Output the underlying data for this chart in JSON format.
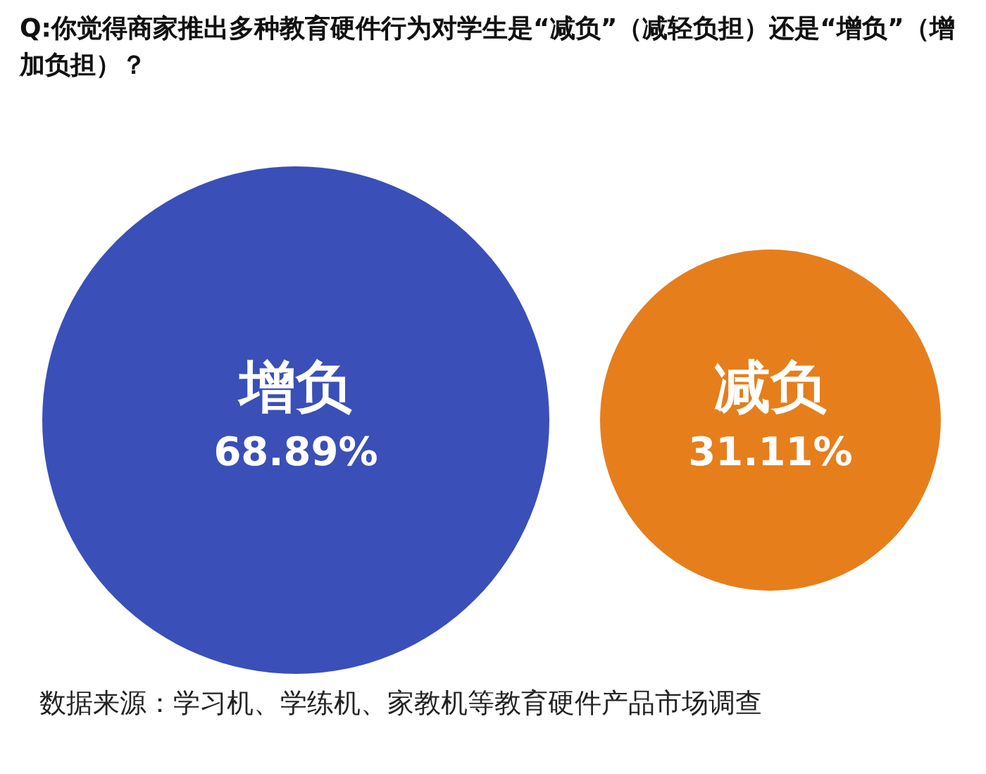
{
  "chart_data": {
    "type": "other",
    "title": "Q:你觉得商家推出多种教育硬件行为对学生是“减负”（减轻负担）还是“增负”（增加负担）？",
    "categories": [
      "增负",
      "减负"
    ],
    "values": [
      68.89,
      31.11
    ],
    "value_labels": [
      "68.89%",
      "31.11%"
    ],
    "colors": [
      "#3a4fb8",
      "#e67e1c"
    ],
    "annotations": [
      "数据来源：学习机、学练机、家教机等教育硬件产品市场调查"
    ]
  }
}
